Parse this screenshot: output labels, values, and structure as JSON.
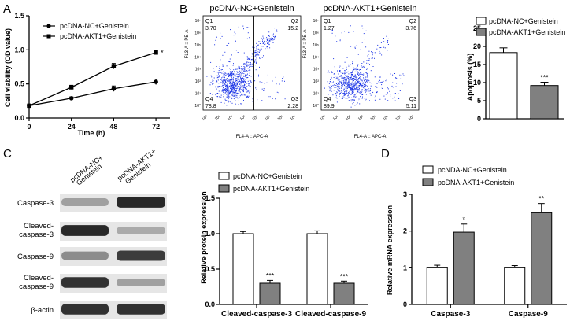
{
  "panels": {
    "A": "A",
    "B": "B",
    "C": "C",
    "D": "D"
  },
  "colors": {
    "bar_nc": "#ffffff",
    "bar_akt1": "#808080",
    "dot_plot": "#1a33e6",
    "axis": "#000000"
  },
  "flow": {
    "plots": [
      {
        "title": "pcDNA-NC+Genistein",
        "q1_label": "Q1",
        "q1": "3.70",
        "q2_label": "Q2",
        "q2": "15.2",
        "q3_label": "Q3",
        "q3": "2.28",
        "q4_label": "Q4",
        "q4": "78.8",
        "ylabel": "FL3-A :: PE-A",
        "xlabel": "FL4-A :: APC-A"
      },
      {
        "title": "pcDNA-AKT1+Genistein",
        "q1_label": "Q1",
        "q1": "1.27",
        "q2_label": "Q2",
        "q2": "3.76",
        "q3_label": "Q3",
        "q3": "5.11",
        "q4_label": "Q4",
        "q4": "89.9",
        "ylabel": "FL3-A :: PE-A",
        "xlabel": "FL4-A :: APC-A"
      }
    ],
    "ticks": [
      "10⁰",
      "10¹",
      "10²",
      "10³",
      "10⁴",
      "10⁵",
      "10⁶",
      "10⁷"
    ]
  },
  "western": {
    "lanes": [
      "pcDNA-NC+\nGenistein",
      "pcDNA-AKT1+\nGenistein"
    ],
    "lane1_line1": "pcDNA-NC+",
    "lane1_line2": "Genistein",
    "lane2_line1": "pcDNA-AKT1+",
    "lane2_line2": "Genistein",
    "rows": [
      {
        "label1": "Caspase-3",
        "label2": "",
        "band": [
          0.35,
          0.95
        ]
      },
      {
        "label1": "Cleaved-",
        "label2": "caspase-3",
        "band": [
          0.95,
          0.3
        ]
      },
      {
        "label1": "Caspase-9",
        "label2": "",
        "band": [
          0.45,
          0.85
        ]
      },
      {
        "label1": "Cleaved-",
        "label2": "caspase-9",
        "band": [
          0.9,
          0.35
        ]
      },
      {
        "label1": "β-actin",
        "label2": "",
        "band": [
          0.9,
          0.9
        ]
      }
    ]
  },
  "chart_data": [
    {
      "panel": "A",
      "type": "line",
      "x": [
        0,
        24,
        48,
        72
      ],
      "series": [
        {
          "name": "pcDNA-NC+Genistein",
          "values": [
            0.18,
            0.29,
            0.43,
            0.53
          ],
          "errors": [
            0.02,
            0.02,
            0.04,
            0.04
          ],
          "marker": "circle"
        },
        {
          "name": "pcDNA-AKT1+Genistein",
          "values": [
            0.18,
            0.45,
            0.76,
            0.96
          ],
          "errors": [
            0.02,
            0.03,
            0.04,
            0.03
          ],
          "marker": "square"
        }
      ],
      "annotations": [
        {
          "text": "*",
          "x": 72
        }
      ],
      "xlabel": "Time (h)",
      "ylabel": "Cell viability (OD value)",
      "xticks": [
        "0",
        "24",
        "48",
        "72"
      ],
      "yticks": [
        "0.0",
        "0.5",
        "1.0",
        "1.5"
      ],
      "xlim": [
        0,
        80
      ],
      "ylim": [
        0,
        1.5
      ]
    },
    {
      "panel": "B",
      "type": "bar",
      "categories": [
        "pcDNA-NC+Genistein",
        "pcDNA-AKT1+Genistein"
      ],
      "values": [
        18.3,
        9.2
      ],
      "errors": [
        1.3,
        0.9
      ],
      "annotations": [
        "",
        "***"
      ],
      "ylabel": "Apoptosis (%)",
      "yticks": [
        "0",
        "5",
        "10",
        "15",
        "20",
        "25"
      ],
      "ylim": [
        0,
        25
      ],
      "legend": [
        "pcDNA-NC+Genistein",
        "pcDNA-AKT1+Genistein"
      ]
    },
    {
      "panel": "C",
      "type": "bar",
      "categories": [
        "Cleaved-caspase-3",
        "Cleaved-caspase-9"
      ],
      "series": [
        {
          "name": "pcDNA-NC+Genistein",
          "values": [
            1.0,
            1.0
          ],
          "errors": [
            0.03,
            0.04
          ]
        },
        {
          "name": "pcDNA-AKT1+Genistein",
          "values": [
            0.3,
            0.3
          ],
          "errors": [
            0.04,
            0.03
          ]
        }
      ],
      "annotations": [
        "***",
        "***"
      ],
      "ylabel": "Relative protein expression",
      "yticks": [
        "0.0",
        "0.5",
        "1.0",
        "1.5"
      ],
      "ylim": [
        0,
        1.5
      ]
    },
    {
      "panel": "D",
      "type": "bar",
      "categories": [
        "Caspase-3",
        "Caspase-9"
      ],
      "series": [
        {
          "name": "pcNDA-NC+Genistein",
          "values": [
            1.0,
            1.0
          ],
          "errors": [
            0.07,
            0.06
          ]
        },
        {
          "name": "pcDNA-AKT1+Genistein",
          "values": [
            1.97,
            2.5
          ],
          "errors": [
            0.22,
            0.25
          ]
        }
      ],
      "annotations": [
        "*",
        "**"
      ],
      "ylabel": "Relative mRNA expression",
      "yticks": [
        "0",
        "1",
        "2",
        "3"
      ],
      "ylim": [
        0,
        3
      ]
    }
  ]
}
